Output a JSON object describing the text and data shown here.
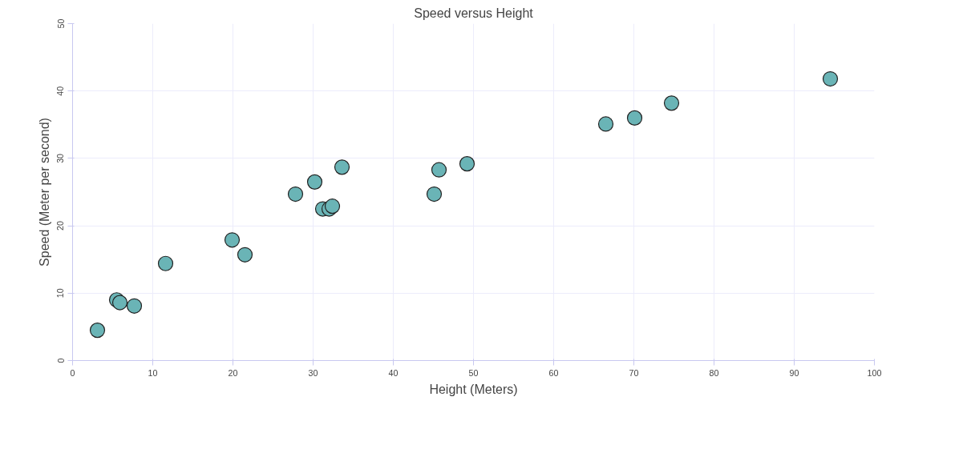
{
  "chart_data": {
    "type": "scatter",
    "title": "Speed versus Height",
    "xlabel": "Height (Meters)",
    "ylabel": "Speed (Meter per second)",
    "x": [
      3.1,
      5.5,
      5.9,
      7.7,
      11.6,
      19.9,
      21.5,
      27.8,
      30.2,
      31.2,
      32.0,
      32.4,
      33.6,
      45.1,
      45.7,
      49.2,
      66.5,
      70.1,
      74.7,
      94.5
    ],
    "series": [
      {
        "color": "#6ab4b6",
        "values": [
          4.5,
          9.0,
          8.6,
          8.1,
          14.4,
          17.9,
          15.7,
          24.7,
          26.5,
          22.5,
          22.5,
          22.9,
          28.7,
          24.7,
          28.3,
          29.2,
          35.1,
          36.0,
          38.2,
          41.8
        ]
      }
    ],
    "xlim": [
      0,
      100
    ],
    "xticks": [
      0,
      10,
      20,
      30,
      40,
      50,
      60,
      70,
      80,
      90,
      100
    ],
    "ylim": [
      0,
      50
    ],
    "yticks": [
      0,
      10,
      20,
      30,
      40,
      50
    ],
    "grid": true,
    "marker": "circle"
  }
}
